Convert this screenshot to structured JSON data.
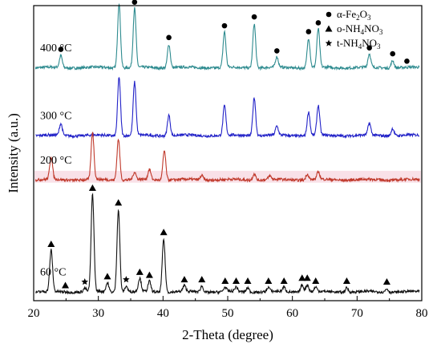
{
  "chart_data": {
    "type": "line",
    "title": "",
    "xlabel": "2-Theta (degree)",
    "ylabel": "Intensity (a.u.)",
    "xlim": [
      20,
      80
    ],
    "ylim": [
      0,
      100
    ],
    "x_ticks": [
      "20",
      "30",
      "40",
      "50",
      "60",
      "70",
      "80"
    ],
    "grid": false,
    "legend_position": "top-right",
    "legend": [
      {
        "symbol": "circle",
        "label_main": "α-Fe",
        "sub1": "2",
        "mid": "O",
        "sub2": "3",
        "end": ""
      },
      {
        "symbol": "triangle",
        "label_main": "o-NH",
        "sub1": "4",
        "mid": "NO",
        "sub2": "3",
        "end": ""
      },
      {
        "symbol": "star",
        "label_main": "t-NH",
        "sub1": "4",
        "mid": "NO",
        "sub2": "3",
        "end": ""
      }
    ],
    "series": [
      {
        "name": "400 °C",
        "color": "#2e8b8f",
        "baseline": 79,
        "peaks": [
          [
            24.2,
            4
          ],
          [
            33.2,
            22
          ],
          [
            35.6,
            20
          ],
          [
            40.9,
            8
          ],
          [
            49.5,
            12
          ],
          [
            54.1,
            15
          ],
          [
            57.6,
            3.5
          ],
          [
            62.5,
            10
          ],
          [
            64.0,
            13
          ],
          [
            71.9,
            4.5
          ],
          [
            75.5,
            2.5
          ]
        ],
        "circle_markers": [
          24.2,
          33.2,
          35.6,
          40.9,
          49.5,
          54.1,
          57.6,
          62.5,
          64.0,
          71.9,
          75.5,
          77.7
        ]
      },
      {
        "name": "300 °C",
        "color": "#2222c8",
        "baseline": 56,
        "peaks": [
          [
            24.2,
            4
          ],
          [
            33.2,
            20
          ],
          [
            35.6,
            18
          ],
          [
            40.9,
            7
          ],
          [
            49.5,
            10
          ],
          [
            54.1,
            13
          ],
          [
            57.6,
            3
          ],
          [
            62.5,
            8
          ],
          [
            64.0,
            10
          ],
          [
            71.9,
            4
          ],
          [
            75.5,
            2.5
          ]
        ]
      },
      {
        "name": "200 °C",
        "color": "#c0392b",
        "baseline": 41,
        "band_color": "#f7d4de",
        "peaks": [
          [
            22.7,
            7.5
          ],
          [
            29.1,
            16
          ],
          [
            33.1,
            14
          ],
          [
            35.6,
            2.5
          ],
          [
            37.9,
            3.5
          ],
          [
            40.2,
            10
          ],
          [
            46.0,
            1.5
          ],
          [
            54.1,
            2.2
          ],
          [
            56.5,
            1.2
          ],
          [
            62.3,
            2
          ],
          [
            64.0,
            2.5
          ]
        ]
      },
      {
        "name": "60 °C",
        "color": "#111111",
        "baseline": 3,
        "peaks": [
          [
            22.7,
            14
          ],
          [
            27.9,
            1.2
          ],
          [
            29.1,
            33
          ],
          [
            31.4,
            3
          ],
          [
            33.1,
            28
          ],
          [
            34.3,
            2
          ],
          [
            36.4,
            4.5
          ],
          [
            37.9,
            3.5
          ],
          [
            40.1,
            18
          ],
          [
            43.3,
            2
          ],
          [
            46.0,
            2
          ],
          [
            49.6,
            1.5
          ],
          [
            51.3,
            1.5
          ],
          [
            53.1,
            1.5
          ],
          [
            56.3,
            1.5
          ],
          [
            58.7,
            1.5
          ],
          [
            61.5,
            2.5
          ],
          [
            62.3,
            2.5
          ],
          [
            63.6,
            1.5
          ],
          [
            68.4,
            1.5
          ],
          [
            74.6,
            1.2
          ]
        ],
        "triangle_markers": [
          22.7,
          24.9,
          29.1,
          31.4,
          33.1,
          36.4,
          37.9,
          40.1,
          43.3,
          46.0,
          49.6,
          51.3,
          53.1,
          56.3,
          58.7,
          61.5,
          62.3,
          63.6,
          68.4,
          74.6
        ],
        "star_markers": [
          27.9,
          34.3
        ]
      }
    ]
  }
}
